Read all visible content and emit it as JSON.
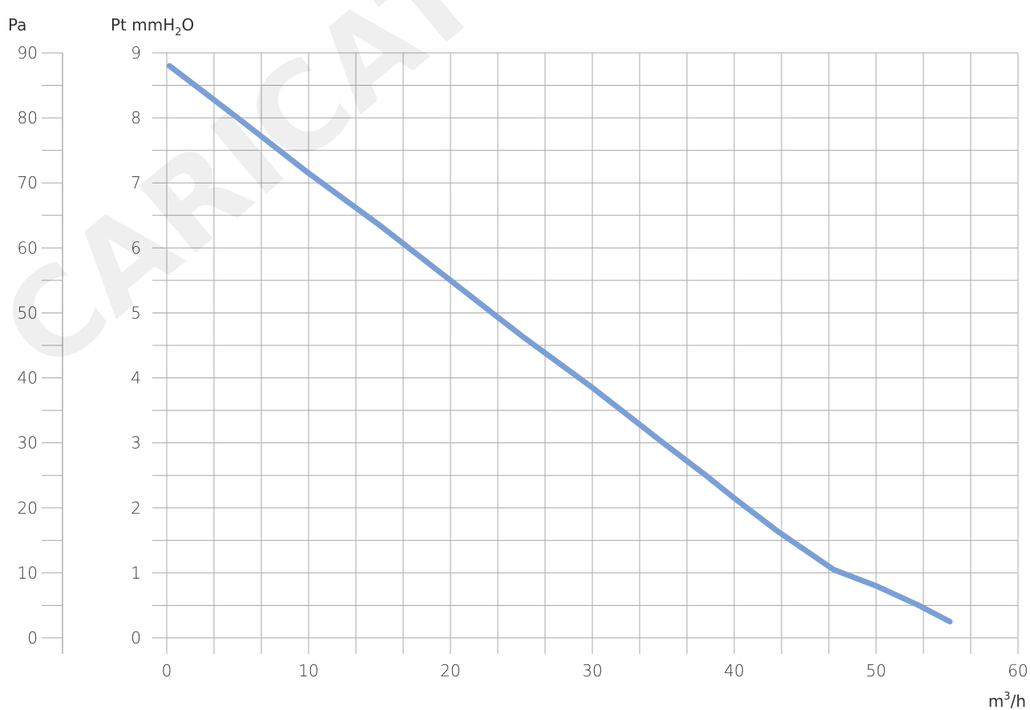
{
  "chart_data": {
    "type": "line",
    "title": "",
    "axes": {
      "left_outer": {
        "label": "Pa",
        "ticks": [
          "0",
          "10",
          "20",
          "30",
          "40",
          "50",
          "60",
          "70",
          "80",
          "90"
        ],
        "range": [
          0,
          90
        ]
      },
      "left_inner": {
        "label": "Pt mmH",
        "label_sub": "2",
        "label_suffix": "O",
        "ticks": [
          "0",
          "1",
          "2",
          "3",
          "4",
          "5",
          "6",
          "7",
          "8",
          "9"
        ],
        "range": [
          0,
          9
        ]
      },
      "x": {
        "label": "m",
        "label_sup": "3",
        "label_suffix": "/h",
        "ticks": [
          "0",
          "10",
          "20",
          "30",
          "40",
          "50",
          "60"
        ],
        "range": [
          0,
          60
        ]
      }
    },
    "grid": true,
    "series": [
      {
        "color": "#7a9fd6",
        "x": [
          0.2,
          5,
          10,
          15,
          20,
          25,
          30,
          35,
          38,
          40,
          43,
          45,
          47,
          50,
          53,
          55.2
        ],
        "y": [
          8.8,
          8.0,
          7.15,
          6.35,
          5.5,
          4.65,
          3.85,
          3.0,
          2.5,
          2.15,
          1.65,
          1.35,
          1.05,
          0.8,
          0.5,
          0.25
        ]
      }
    ]
  },
  "watermark": "CARICATO DAL",
  "colors": {
    "grid": "#a8a8a8",
    "line": "#7a9fd6",
    "text": "#333333"
  }
}
